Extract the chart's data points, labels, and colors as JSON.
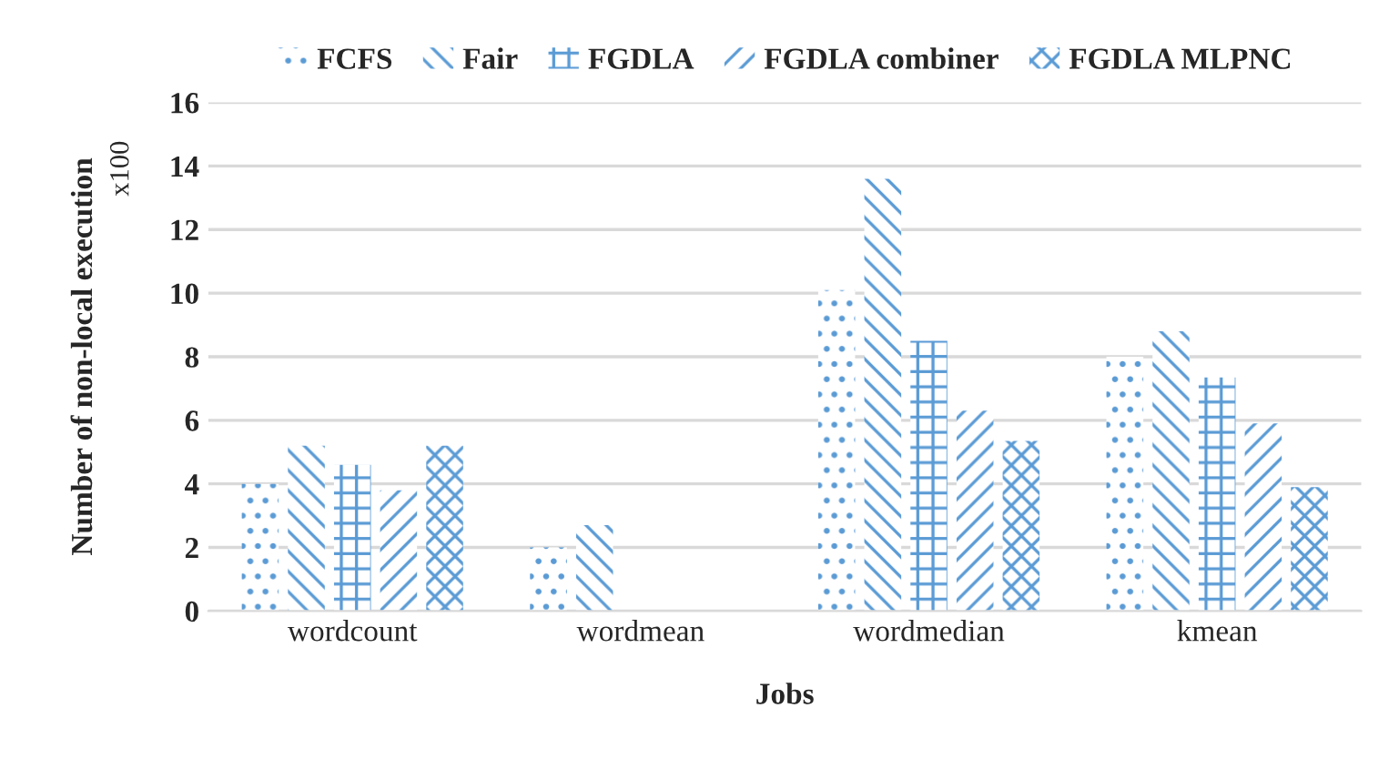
{
  "chart_data": {
    "type": "bar",
    "xlabel": "Jobs",
    "ylabel": "Number of non-local execution",
    "annotations": [
      "x100"
    ],
    "categories": [
      "wordcount",
      "wordmean",
      "wordmedian",
      "kmean"
    ],
    "series": [
      {
        "name": "FCFS",
        "color": "#5b9bd5",
        "values": [
          4.0,
          2.0,
          10.1,
          8.0
        ]
      },
      {
        "name": "Fair",
        "color": "#5b9bd5",
        "values": [
          5.2,
          2.7,
          13.6,
          8.8
        ]
      },
      {
        "name": "FGDLA",
        "color": "#5b9bd5",
        "values": [
          4.6,
          0,
          8.5,
          7.35
        ]
      },
      {
        "name": "FGDLA combiner",
        "color": "#5b9bd5",
        "values": [
          3.8,
          0,
          6.3,
          5.9
        ]
      },
      {
        "name": "FGDLA MLPNC",
        "color": "#5b9bd5",
        "values": [
          5.2,
          0,
          5.35,
          3.9
        ]
      }
    ],
    "ylim": [
      0,
      16
    ],
    "yticks": [
      0,
      2,
      4,
      6,
      8,
      10,
      12,
      14,
      16
    ],
    "grid": "y",
    "legend": "top"
  }
}
